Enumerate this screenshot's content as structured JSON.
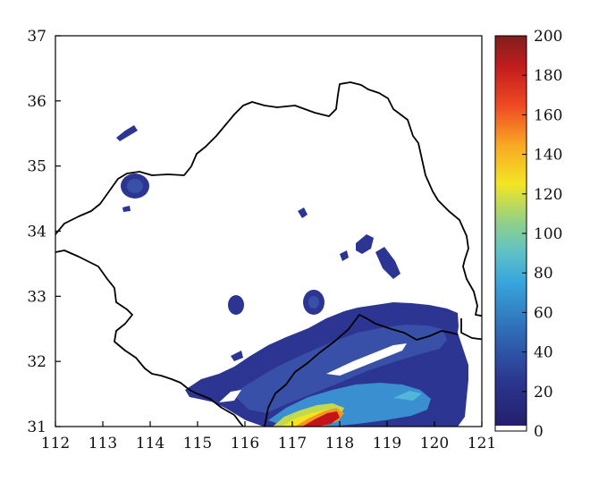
{
  "map": {
    "x_axis": {
      "ticks": [
        "112",
        "113",
        "114",
        "115",
        "116",
        "117",
        "118",
        "119",
        "120",
        "121"
      ],
      "range": [
        112,
        121
      ]
    },
    "y_axis": {
      "ticks": [
        "31",
        "32",
        "33",
        "34",
        "35",
        "36",
        "37"
      ],
      "range": [
        31,
        37
      ]
    },
    "colorbar": {
      "ticks": [
        "0",
        "20",
        "40",
        "60",
        "80",
        "100",
        "120",
        "140",
        "160",
        "180",
        "200"
      ],
      "range": [
        0,
        200
      ],
      "colormap": "jet"
    },
    "colors": {
      "boundary": "#000000",
      "low": "#2b2f8f",
      "mid": "#3a8fd0",
      "high": "#f4e321",
      "peak": "#c3141b"
    }
  }
}
